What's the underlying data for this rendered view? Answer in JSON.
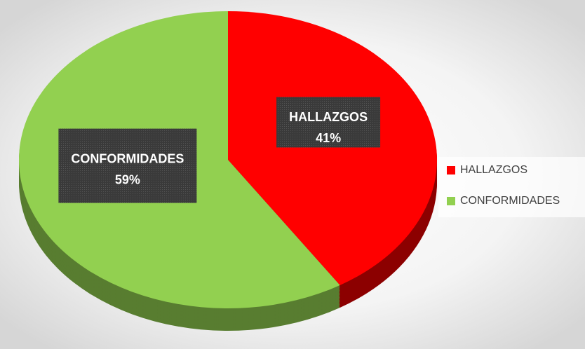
{
  "chart_data": {
    "type": "pie",
    "categories": [
      "HALLAZGOS",
      "CONFORMIDADES"
    ],
    "values": [
      41,
      59
    ],
    "value_labels": [
      "41%",
      "59%"
    ],
    "colors": [
      "#ff0000",
      "#92d050"
    ],
    "legend": "right"
  }
}
